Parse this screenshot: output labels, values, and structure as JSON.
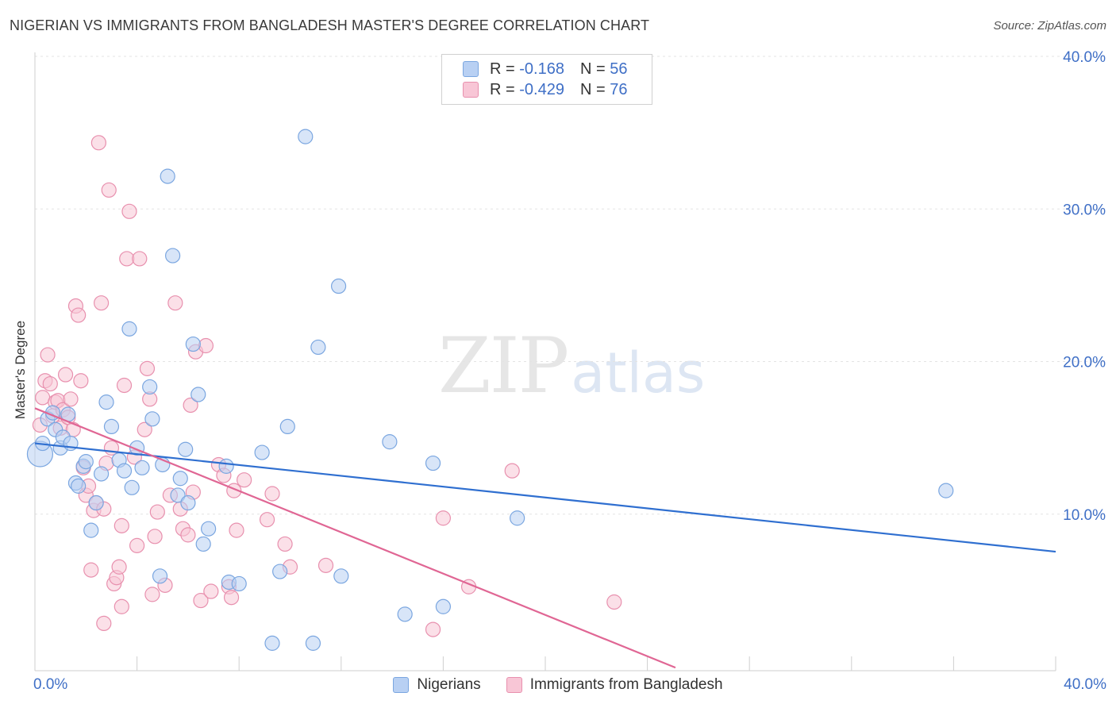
{
  "header": {
    "title": "NIGERIAN VS IMMIGRANTS FROM BANGLADESH MASTER'S DEGREE CORRELATION CHART",
    "source": "Source: ZipAtlas.com"
  },
  "watermark": {
    "zip": "ZIP",
    "atlas": "atlas"
  },
  "legend": {
    "row1": {
      "r_label": "R =",
      "r_value": "-0.168",
      "n_label": "N =",
      "n_value": "56"
    },
    "row2": {
      "r_label": "R =",
      "r_value": "-0.429",
      "n_label": "N =",
      "n_value": "76"
    }
  },
  "colors": {
    "blue_fill": "#b8d0f3",
    "blue_stroke": "#7aa6e0",
    "blue_line": "#2f6fd0",
    "pink_fill": "#f8c6d6",
    "pink_stroke": "#e890ae",
    "pink_line": "#e06694",
    "tick_text": "#3f6fc6",
    "grid": "#e3e3e3"
  },
  "chart_data": {
    "type": "scatter",
    "title": "NIGERIAN VS IMMIGRANTS FROM BANGLADESH MASTER'S DEGREE CORRELATION CHART",
    "xlabel": "",
    "ylabel": "Master's Degree",
    "xlim": [
      0,
      40
    ],
    "ylim": [
      0,
      40
    ],
    "x_tick_labels": [
      "0.0%",
      "40.0%"
    ],
    "y_ticks": [
      10,
      20,
      30,
      40
    ],
    "y_tick_labels": [
      "10.0%",
      "20.0%",
      "30.0%",
      "40.0%"
    ],
    "grid": true,
    "legend_position": "bottom",
    "series": [
      {
        "name": "Nigerians",
        "r": -0.168,
        "n": 56,
        "trend": {
          "x0": 0,
          "y0": 14.9,
          "x1": 40,
          "y1": 7.8
        },
        "points": [
          [
            0.2,
            14.2
          ],
          [
            0.3,
            14.9
          ],
          [
            0.5,
            16.5
          ],
          [
            0.7,
            16.9
          ],
          [
            0.8,
            15.8
          ],
          [
            1.0,
            14.6
          ],
          [
            1.1,
            15.3
          ],
          [
            1.4,
            14.9
          ],
          [
            1.6,
            12.3
          ],
          [
            1.7,
            12.1
          ],
          [
            1.9,
            13.4
          ],
          [
            2.0,
            13.7
          ],
          [
            2.2,
            9.2
          ],
          [
            2.4,
            11.0
          ],
          [
            2.6,
            12.9
          ],
          [
            2.8,
            17.6
          ],
          [
            3.0,
            16.0
          ],
          [
            3.3,
            13.8
          ],
          [
            3.5,
            13.1
          ],
          [
            3.7,
            22.4
          ],
          [
            3.8,
            12.0
          ],
          [
            4.0,
            14.6
          ],
          [
            4.2,
            13.3
          ],
          [
            4.5,
            18.6
          ],
          [
            4.6,
            16.5
          ],
          [
            4.9,
            6.2
          ],
          [
            5.0,
            13.5
          ],
          [
            5.2,
            32.4
          ],
          [
            5.4,
            27.2
          ],
          [
            5.6,
            11.5
          ],
          [
            5.7,
            12.6
          ],
          [
            5.9,
            14.5
          ],
          [
            6.0,
            11.0
          ],
          [
            6.2,
            21.4
          ],
          [
            6.4,
            18.1
          ],
          [
            6.6,
            8.3
          ],
          [
            6.8,
            9.3
          ],
          [
            7.5,
            13.4
          ],
          [
            7.6,
            5.8
          ],
          [
            8.0,
            5.7
          ],
          [
            8.9,
            14.3
          ],
          [
            9.3,
            1.8
          ],
          [
            9.6,
            6.5
          ],
          [
            9.9,
            16.0
          ],
          [
            10.6,
            35.0
          ],
          [
            10.9,
            1.8
          ],
          [
            11.1,
            21.2
          ],
          [
            11.9,
            25.2
          ],
          [
            12.0,
            6.2
          ],
          [
            13.9,
            15.0
          ],
          [
            14.5,
            3.7
          ],
          [
            15.6,
            13.6
          ],
          [
            16.0,
            4.2
          ],
          [
            18.9,
            10.0
          ],
          [
            35.7,
            11.8
          ],
          [
            1.3,
            16.8
          ]
        ]
      },
      {
        "name": "Immigrants from Bangladesh",
        "r": -0.429,
        "n": 76,
        "trend": {
          "x0": 0,
          "y0": 17.2,
          "x1": 25.1,
          "y1": 0.2
        },
        "points": [
          [
            0.2,
            16.1
          ],
          [
            0.3,
            17.9
          ],
          [
            0.4,
            19.0
          ],
          [
            0.5,
            20.7
          ],
          [
            0.6,
            18.8
          ],
          [
            0.7,
            16.7
          ],
          [
            0.8,
            17.6
          ],
          [
            0.9,
            17.7
          ],
          [
            1.0,
            15.9
          ],
          [
            1.1,
            17.1
          ],
          [
            1.2,
            19.4
          ],
          [
            1.3,
            16.6
          ],
          [
            1.4,
            17.8
          ],
          [
            1.5,
            15.8
          ],
          [
            1.6,
            23.9
          ],
          [
            1.7,
            23.3
          ],
          [
            1.8,
            19.0
          ],
          [
            1.9,
            13.3
          ],
          [
            2.0,
            11.5
          ],
          [
            2.1,
            12.1
          ],
          [
            2.2,
            6.6
          ],
          [
            2.3,
            10.5
          ],
          [
            2.4,
            11.0
          ],
          [
            2.5,
            34.6
          ],
          [
            2.6,
            24.1
          ],
          [
            2.7,
            10.6
          ],
          [
            2.8,
            13.6
          ],
          [
            2.9,
            31.5
          ],
          [
            3.0,
            14.6
          ],
          [
            3.1,
            5.7
          ],
          [
            3.2,
            6.1
          ],
          [
            3.3,
            6.8
          ],
          [
            3.4,
            9.5
          ],
          [
            3.5,
            18.7
          ],
          [
            3.6,
            27.0
          ],
          [
            3.7,
            30.1
          ],
          [
            3.9,
            14.0
          ],
          [
            4.0,
            8.2
          ],
          [
            4.1,
            27.0
          ],
          [
            4.3,
            15.8
          ],
          [
            4.4,
            19.8
          ],
          [
            4.5,
            17.8
          ],
          [
            4.6,
            5.0
          ],
          [
            4.7,
            8.8
          ],
          [
            4.8,
            10.4
          ],
          [
            5.1,
            5.6
          ],
          [
            5.3,
            11.5
          ],
          [
            5.5,
            24.1
          ],
          [
            5.7,
            10.6
          ],
          [
            5.8,
            9.3
          ],
          [
            6.0,
            8.9
          ],
          [
            6.1,
            17.4
          ],
          [
            6.2,
            11.7
          ],
          [
            6.3,
            20.9
          ],
          [
            6.5,
            4.6
          ],
          [
            6.7,
            21.3
          ],
          [
            6.9,
            5.2
          ],
          [
            7.2,
            13.5
          ],
          [
            7.4,
            12.8
          ],
          [
            7.6,
            5.5
          ],
          [
            7.7,
            4.8
          ],
          [
            7.8,
            11.8
          ],
          [
            7.9,
            9.2
          ],
          [
            8.2,
            12.5
          ],
          [
            9.1,
            9.9
          ],
          [
            9.3,
            11.6
          ],
          [
            9.8,
            8.3
          ],
          [
            10.0,
            6.8
          ],
          [
            3.4,
            4.2
          ],
          [
            2.7,
            3.1
          ],
          [
            16.0,
            10.0
          ],
          [
            17.0,
            5.5
          ],
          [
            18.7,
            13.1
          ],
          [
            22.7,
            4.5
          ],
          [
            15.6,
            2.7
          ],
          [
            11.4,
            6.9
          ]
        ]
      }
    ]
  },
  "bottom_legend": {
    "series1": "Nigerians",
    "series2": "Immigrants from Bangladesh"
  }
}
